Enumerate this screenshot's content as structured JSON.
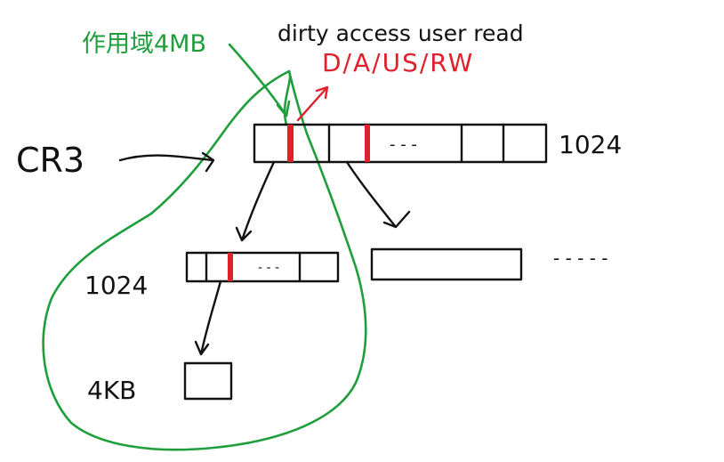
{
  "labels": {
    "cr3": "CR3",
    "top_count": "1024",
    "second_count": "1024",
    "page_size": "4KB",
    "green_note": "作用域4MB",
    "flag_words": "dirty access user read",
    "flag_bits": "D/A/US/RW",
    "top_dots": "- - -",
    "second_dots": "- - -",
    "trailing_dashes": "- - - - -"
  },
  "colors": {
    "ink": "#111111",
    "highlight": "#e0202a",
    "scope": "#1f9e3c"
  }
}
